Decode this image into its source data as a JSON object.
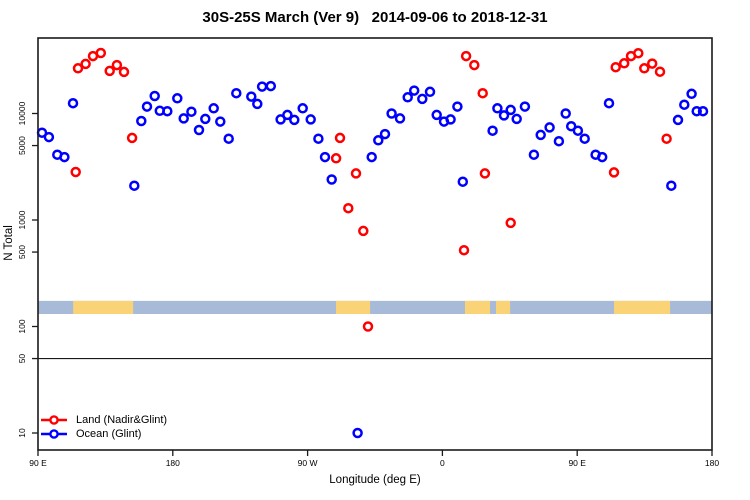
{
  "chart_data": {
    "type": "scatter",
    "title": "30S-25S March (Ver 9)   2014-09-06 to 2018-12-31",
    "xlabel": "Longitude (deg E)",
    "ylabel": "N Total",
    "x_axis": {
      "range_deg": [
        90,
        540
      ],
      "ticks_deg": [
        90,
        180,
        270,
        360,
        450,
        540
      ],
      "tick_labels": [
        "90 E",
        "180",
        "90 W",
        "0",
        "90 E",
        "180"
      ]
    },
    "y_axis": {
      "scale": "log10",
      "range": [
        9.3,
        49000
      ],
      "ticks": [
        10,
        50,
        100,
        500,
        1000,
        5000,
        10000
      ],
      "tick_labels": [
        "10",
        "50",
        "100",
        "500",
        "1000",
        "5000",
        "10000"
      ]
    },
    "reference_line_y": 50,
    "surface_strip": {
      "meaning": "ocean/land surface type vs longitude",
      "value_range": [
        131,
        174
      ],
      "ocean_color": "#a7bbd8",
      "land_color": "#fbd377",
      "land_segments_deg": [
        [
          113.5,
          153.5
        ],
        [
          289.0,
          311.7
        ],
        [
          375.1,
          391.8
        ],
        [
          395.8,
          405.2
        ],
        [
          474.6,
          512.0
        ]
      ]
    },
    "legend_position": "bottom-left",
    "series": [
      {
        "name": "Land (Nadir&Glint)",
        "color": "#ff0000",
        "points": [
          [
            116.7,
            26600
          ],
          [
            121.8,
            29200
          ],
          [
            126.7,
            34600
          ],
          [
            131.9,
            37000
          ],
          [
            137.9,
            25100
          ],
          [
            142.7,
            28500
          ],
          [
            147.4,
            24600
          ],
          [
            152.8,
            5900
          ],
          [
            115.2,
            2820
          ],
          [
            289.0,
            3800
          ],
          [
            291.6,
            5900
          ],
          [
            302.3,
            2740
          ],
          [
            297.2,
            1290
          ],
          [
            307.2,
            790
          ],
          [
            310.3,
            100
          ],
          [
            375.8,
            34600
          ],
          [
            381.3,
            28500
          ],
          [
            386.9,
            15500
          ],
          [
            388.4,
            2740
          ],
          [
            374.4,
            520
          ],
          [
            405.6,
            940
          ],
          [
            475.7,
            27200
          ],
          [
            481.4,
            29600
          ],
          [
            485.9,
            34600
          ],
          [
            490.8,
            36800
          ],
          [
            494.8,
            26600
          ],
          [
            500.1,
            29400
          ],
          [
            505.3,
            24700
          ],
          [
            474.6,
            2800
          ],
          [
            509.7,
            5800
          ]
        ]
      },
      {
        "name": "Ocean (Glint)",
        "color": "#0000ff",
        "points": [
          [
            92.7,
            6600
          ],
          [
            97.3,
            6000
          ],
          [
            102.9,
            4100
          ],
          [
            107.6,
            3900
          ],
          [
            113.4,
            12500
          ],
          [
            154.3,
            2100
          ],
          [
            159.0,
            8500
          ],
          [
            162.8,
            11600
          ],
          [
            167.9,
            14600
          ],
          [
            171.3,
            10600
          ],
          [
            176.3,
            10500
          ],
          [
            183.0,
            13900
          ],
          [
            187.3,
            9000
          ],
          [
            192.4,
            10400
          ],
          [
            197.5,
            7000
          ],
          [
            201.7,
            8900
          ],
          [
            207.3,
            11200
          ],
          [
            211.7,
            8400
          ],
          [
            217.3,
            5800
          ],
          [
            222.4,
            15500
          ],
          [
            232.4,
            14400
          ],
          [
            236.4,
            12300
          ],
          [
            239.6,
            17900
          ],
          [
            245.4,
            18100
          ],
          [
            252.0,
            8800
          ],
          [
            256.5,
            9700
          ],
          [
            261.1,
            8700
          ],
          [
            266.7,
            11200
          ],
          [
            272.1,
            8800
          ],
          [
            277.2,
            5800
          ],
          [
            281.6,
            3900
          ],
          [
            286.1,
            2400
          ],
          [
            303.4,
            10
          ],
          [
            312.8,
            3900
          ],
          [
            317.2,
            5600
          ],
          [
            321.7,
            6400
          ],
          [
            326.1,
            10000
          ],
          [
            331.7,
            9000
          ],
          [
            336.8,
            14200
          ],
          [
            341.2,
            16400
          ],
          [
            346.6,
            13700
          ],
          [
            351.7,
            16000
          ],
          [
            356.2,
            9700
          ],
          [
            361.1,
            8400
          ],
          [
            365.5,
            8800
          ],
          [
            370.0,
            11600
          ],
          [
            373.6,
            2290
          ],
          [
            393.5,
            6900
          ],
          [
            396.7,
            11200
          ],
          [
            401.1,
            9600
          ],
          [
            405.6,
            10800
          ],
          [
            409.6,
            8900
          ],
          [
            415.1,
            11600
          ],
          [
            421.1,
            4100
          ],
          [
            425.6,
            6300
          ],
          [
            431.6,
            7400
          ],
          [
            437.8,
            5500
          ],
          [
            442.3,
            10000
          ],
          [
            446.0,
            7600
          ],
          [
            450.5,
            6900
          ],
          [
            455.0,
            5800
          ],
          [
            462.3,
            4100
          ],
          [
            466.7,
            3900
          ],
          [
            471.2,
            12500
          ],
          [
            512.8,
            2100
          ],
          [
            517.3,
            8700
          ],
          [
            521.5,
            12100
          ],
          [
            526.4,
            15300
          ],
          [
            529.8,
            10500
          ],
          [
            534.0,
            10500
          ]
        ]
      }
    ]
  },
  "colors": {
    "background": "#ffffff",
    "axis": "#1a1a1a",
    "land_points": "#ff0000",
    "ocean_points": "#0000ff"
  }
}
